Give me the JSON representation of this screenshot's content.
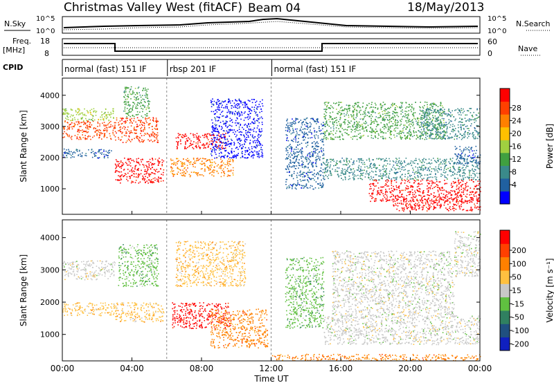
{
  "header": {
    "site": "Christmas Valley West (fitACF)",
    "beam": "Beam 04",
    "date": "18/May/2013"
  },
  "strips": {
    "nsky_label": "N.Sky",
    "nsearch_label": "N.Search",
    "noise_ticks": [
      "10^5",
      "10^0"
    ],
    "freq_label": "Freq.",
    "freq_unit": "[MHz]",
    "freq_ticks": [
      "18",
      "8"
    ],
    "nave_label": "Nave",
    "nave_ticks": [
      "60",
      "0"
    ],
    "cpid_label": "CPID",
    "cpid_segments": [
      {
        "start_hour": 0,
        "text": "normal (fast) 151 IF"
      },
      {
        "start_hour": 6,
        "text": "rbsp 201 IF"
      },
      {
        "start_hour": 12,
        "text": "normal (fast) 151 IF"
      }
    ]
  },
  "chart_data": [
    {
      "type": "heatmap",
      "name": "power",
      "ylabel": "Slant Range [km]",
      "yticks": [
        1000,
        2000,
        3000,
        4000
      ],
      "ylim": [
        180,
        4550
      ],
      "xlim": [
        0,
        24
      ],
      "colorbar_label": "Power [dB]",
      "colorbar_ticks": [
        "28",
        "24",
        "20",
        "16",
        "12",
        "8",
        "4"
      ],
      "colors": [
        "#0000ff",
        "#2060a0",
        "#3a8a8a",
        "#40a040",
        "#a0d040",
        "#ffc000",
        "#ff8000",
        "#ff4000",
        "#ff0000"
      ],
      "scatter_bands": [
        {
          "t0": 0.0,
          "t1": 3.0,
          "r0": 2600,
          "r1": 3200,
          "c": 7
        },
        {
          "t0": 0.0,
          "t1": 2.8,
          "r0": 2000,
          "r1": 2300,
          "c": 1
        },
        {
          "t0": 0.0,
          "t1": 3.0,
          "r0": 3200,
          "r1": 3600,
          "c": 4
        },
        {
          "t0": 3.0,
          "t1": 5.8,
          "r0": 1200,
          "r1": 2000,
          "c": 8
        },
        {
          "t0": 3.0,
          "t1": 5.5,
          "r0": 2500,
          "r1": 3300,
          "c": 7
        },
        {
          "t0": 3.5,
          "t1": 5.0,
          "r0": 3300,
          "r1": 4300,
          "c": 3
        },
        {
          "t0": 6.2,
          "t1": 9.8,
          "r0": 1400,
          "r1": 2000,
          "c": 6
        },
        {
          "t0": 6.5,
          "t1": 9.5,
          "r0": 2300,
          "r1": 2800,
          "c": 8
        },
        {
          "t0": 8.5,
          "t1": 11.5,
          "r0": 2000,
          "r1": 3900,
          "c": 0
        },
        {
          "t0": 12.8,
          "t1": 15.0,
          "r0": 1000,
          "r1": 3300,
          "c": 1
        },
        {
          "t0": 15.0,
          "t1": 24.0,
          "r0": 1300,
          "r1": 2000,
          "c": 2
        },
        {
          "t0": 15.0,
          "t1": 22.0,
          "r0": 2600,
          "r1": 3800,
          "c": 3
        },
        {
          "t0": 17.6,
          "t1": 24.0,
          "r0": 600,
          "r1": 1300,
          "c": 8
        },
        {
          "t0": 19.0,
          "t1": 24.0,
          "r0": 300,
          "r1": 700,
          "c": 8
        },
        {
          "t0": 20.5,
          "t1": 24.0,
          "r0": 2600,
          "r1": 3600,
          "c": 2
        },
        {
          "t0": 22.5,
          "t1": 24.0,
          "r0": 1800,
          "r1": 2400,
          "c": 1
        }
      ]
    },
    {
      "type": "heatmap",
      "name": "velocity",
      "ylabel": "Slant Range [km]",
      "xlabel": "Time UT",
      "xticks": [
        "00:00",
        "04:00",
        "08:00",
        "12:00",
        "16:00",
        "20:00",
        "00:00"
      ],
      "yticks": [
        1000,
        2000,
        3000,
        4000
      ],
      "ylim": [
        180,
        4550
      ],
      "xlim": [
        0,
        24
      ],
      "colorbar_label": "Velocity [m s⁻¹]",
      "colorbar_ticks": [
        "200",
        "100",
        "50",
        "15",
        "-15",
        "-50",
        "-100",
        "-200"
      ],
      "colors": [
        "#1020c0",
        "#205080",
        "#308060",
        "#60c040",
        "#c8c8c8",
        "#ffc040",
        "#ff8000",
        "#ff4000",
        "#ff0000"
      ],
      "scatter_bands": [
        {
          "t0": 0.0,
          "t1": 3.0,
          "r0": 2700,
          "r1": 3300,
          "c": 4
        },
        {
          "t0": 0.0,
          "t1": 3.0,
          "r0": 1600,
          "r1": 2000,
          "c": 5
        },
        {
          "t0": 3.0,
          "t1": 5.8,
          "r0": 1400,
          "r1": 2000,
          "c": 5
        },
        {
          "t0": 3.2,
          "t1": 5.5,
          "r0": 2500,
          "r1": 3800,
          "c": 3
        },
        {
          "t0": 6.3,
          "t1": 9.7,
          "r0": 1200,
          "r1": 2000,
          "c": 8
        },
        {
          "t0": 8.5,
          "t1": 11.8,
          "r0": 600,
          "r1": 1800,
          "c": 6
        },
        {
          "t0": 6.5,
          "t1": 10.5,
          "r0": 2500,
          "r1": 3900,
          "c": 5
        },
        {
          "t0": 12.8,
          "t1": 15.0,
          "r0": 1200,
          "r1": 3400,
          "c": 3
        },
        {
          "t0": 15.0,
          "t1": 24.0,
          "r0": 700,
          "r1": 1600,
          "c": 4
        },
        {
          "t0": 15.5,
          "t1": 22.5,
          "r0": 1600,
          "r1": 3600,
          "c": 4
        },
        {
          "t0": 22.5,
          "t1": 24.0,
          "r0": 2800,
          "r1": 4200,
          "c": 4
        },
        {
          "t0": 12.0,
          "t1": 24.0,
          "r0": 200,
          "r1": 400,
          "c": 6
        }
      ]
    }
  ]
}
